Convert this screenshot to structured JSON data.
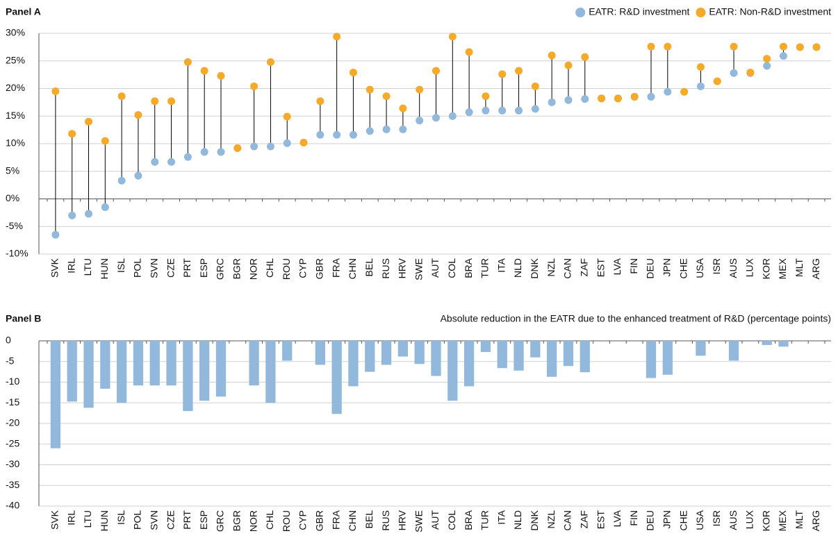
{
  "chart_data": [
    {
      "type": "dumbbell",
      "title": "Panel A",
      "categories": [
        "SVK",
        "IRL",
        "LTU",
        "HUN",
        "ISL",
        "POL",
        "SVN",
        "CZE",
        "PRT",
        "ESP",
        "GRC",
        "BGR",
        "NOR",
        "CHL",
        "ROU",
        "CYP",
        "GBR",
        "FRA",
        "CHN",
        "BEL",
        "RUS",
        "HRV",
        "SWE",
        "AUT",
        "COL",
        "BRA",
        "TUR",
        "ITA",
        "NLD",
        "DNK",
        "NZL",
        "CAN",
        "ZAF",
        "EST",
        "LVA",
        "FIN",
        "DEU",
        "JPN",
        "CHE",
        "USA",
        "ISR",
        "AUS",
        "LUX",
        "KOR",
        "MEX",
        "MLT",
        "ARG"
      ],
      "series": [
        {
          "name": "EATR: R&D investment",
          "color": "#92b8dc",
          "values": [
            -6.5,
            -3,
            -2.7,
            -1.5,
            3.3,
            4.2,
            6.7,
            6.7,
            7.6,
            8.5,
            8.5,
            9.2,
            9.5,
            9.5,
            10.1,
            10.2,
            11.6,
            11.6,
            11.6,
            12.3,
            12.6,
            12.6,
            14.2,
            14.7,
            15,
            15.7,
            16,
            16,
            16,
            16.3,
            17.5,
            17.9,
            18.1,
            18.2,
            18.2,
            18.5,
            18.5,
            19.4,
            19.4,
            20.4,
            21.3,
            22.8,
            22.8,
            24.1,
            25.9,
            27.5,
            27.5
          ]
        },
        {
          "name": "EATR: Non-R&D investment",
          "color": "#f6aa2a",
          "values": [
            19.5,
            11.8,
            14,
            10.5,
            18.6,
            15.2,
            17.7,
            17.7,
            24.8,
            23.2,
            22.3,
            9.2,
            20.4,
            24.8,
            14.9,
            10.2,
            17.7,
            29.4,
            22.9,
            19.8,
            18.6,
            16.4,
            19.8,
            23.2,
            29.4,
            26.6,
            18.6,
            22.6,
            23.2,
            20.4,
            26,
            24.2,
            25.7,
            18.2,
            18.2,
            18.5,
            27.6,
            27.6,
            19.4,
            23.9,
            21.3,
            27.6,
            22.9,
            25.4,
            27.6,
            27.5,
            27.5
          ]
        }
      ],
      "ylim": [
        -10,
        30
      ],
      "yticks": [
        {
          "value": -10,
          "label": "-10%"
        },
        {
          "value": -5,
          "label": "-5%"
        },
        {
          "value": 0,
          "label": "0%"
        },
        {
          "value": 5,
          "label": "5%"
        },
        {
          "value": 10,
          "label": "10%"
        },
        {
          "value": 15,
          "label": "15%"
        },
        {
          "value": 20,
          "label": "20%"
        },
        {
          "value": 25,
          "label": "25%"
        },
        {
          "value": 30,
          "label": "30%"
        }
      ],
      "grid": true,
      "legend": "top-right"
    },
    {
      "type": "bar",
      "title": "Panel B",
      "subtitle": "Absolute reduction in the EATR due to the enhanced treatment of R&D (percentage points)",
      "categories": [
        "SVK",
        "IRL",
        "LTU",
        "HUN",
        "ISL",
        "POL",
        "SVN",
        "CZE",
        "PRT",
        "ESP",
        "GRC",
        "BGR",
        "NOR",
        "CHL",
        "ROU",
        "CYP",
        "GBR",
        "FRA",
        "CHN",
        "BEL",
        "RUS",
        "HRV",
        "SWE",
        "AUT",
        "COL",
        "BRA",
        "TUR",
        "ITA",
        "NLD",
        "DNK",
        "NZL",
        "CAN",
        "ZAF",
        "EST",
        "LVA",
        "FIN",
        "DEU",
        "JPN",
        "CHE",
        "USA",
        "ISR",
        "AUS",
        "LUX",
        "KOR",
        "MEX",
        "MLT",
        "ARG"
      ],
      "values": [
        -26,
        -14.7,
        -16.2,
        -11.6,
        -15,
        -10.8,
        -10.8,
        -10.8,
        -17,
        -14.5,
        -13.5,
        0,
        -10.8,
        -15,
        -4.8,
        0,
        -5.8,
        -17.7,
        -11,
        -7.5,
        -5.8,
        -3.8,
        -5.6,
        -8.5,
        -14.5,
        -11,
        -2.7,
        -6.6,
        -7.2,
        -4,
        -8.7,
        -6.1,
        -7.6,
        0,
        0,
        0,
        -9,
        -8.2,
        0,
        -3.6,
        0,
        -4.8,
        0,
        -1,
        -1.4,
        0,
        0
      ],
      "color": "#92b8dc",
      "ylim": [
        -40,
        0
      ],
      "yticks": [
        -40,
        -35,
        -30,
        -25,
        -20,
        -15,
        -10,
        -5,
        0
      ],
      "grid": true
    }
  ]
}
